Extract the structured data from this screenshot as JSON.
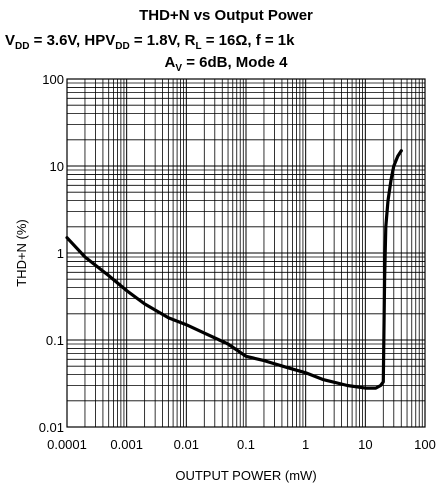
{
  "chart_data": {
    "type": "line",
    "title": {
      "line1": "THD+N vs Output Power",
      "line2": {
        "vdd_prefix": "V",
        "vdd_sub": "DD",
        "vdd_rest": " = 3.6V, HPV",
        "hpvdd_sub": "DD",
        "hpvdd_rest": " = 1.8V, R",
        "rl_sub": "L",
        "rl_rest": " = 16Ω, f = 1k"
      },
      "line3": {
        "av_prefix": "A",
        "av_sub": "V",
        "av_rest": " = 6dB, Mode 4"
      }
    },
    "xlabel": "OUTPUT POWER (mW)",
    "ylabel": "THD+N (%)",
    "x_scale": "log",
    "y_scale": "log",
    "xlim": [
      0.0001,
      100
    ],
    "ylim": [
      0.01,
      100
    ],
    "x_ticks": [
      "0.0001",
      "0.001",
      "0.01",
      "0.1",
      "1",
      "10",
      "100"
    ],
    "y_ticks": [
      "100",
      "10",
      "1",
      "0.1",
      "0.01"
    ],
    "grid": true,
    "series": [
      {
        "x": [
          0.0001,
          0.0002,
          0.0005,
          0.001,
          0.002,
          0.005,
          0.01,
          0.02,
          0.05,
          0.1,
          0.2,
          0.5,
          1,
          2,
          5,
          10,
          15,
          18,
          20,
          21,
          22,
          24,
          27,
          30,
          35,
          40
        ],
        "y": [
          1.5,
          0.9,
          0.55,
          0.37,
          0.26,
          0.18,
          0.15,
          0.12,
          0.09,
          0.065,
          0.058,
          0.048,
          0.042,
          0.035,
          0.03,
          0.028,
          0.028,
          0.03,
          0.033,
          0.5,
          2,
          4,
          7,
          10,
          13,
          15
        ]
      }
    ]
  }
}
